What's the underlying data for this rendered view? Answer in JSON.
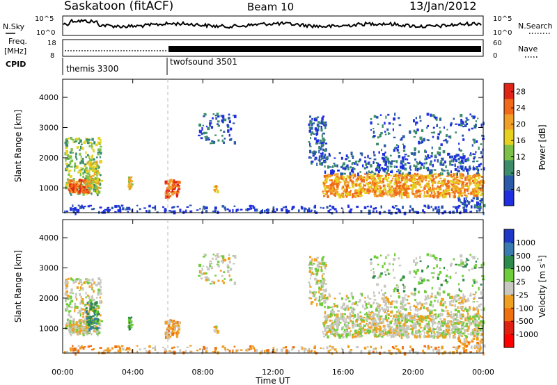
{
  "header": {
    "station": "Saskatoon (fitACF)",
    "beam": "Beam 10",
    "date": "13/Jan/2012"
  },
  "strips": {
    "nsky_label": "N.Sky",
    "nsearch_label": "N.Search",
    "nsky_ticks": [
      "10^5",
      "10^0"
    ],
    "nsearch_ticks": [
      "10^5",
      "10^0"
    ],
    "freq_label_1": "Freq.",
    "freq_label_2": "[MHz]",
    "freq_ticks": [
      "18",
      "8"
    ],
    "nave_label": "Nave",
    "nave_ticks": [
      "60",
      "0"
    ],
    "cpid_label": "CPID",
    "cpid_segments": [
      {
        "name": "themis 3300",
        "start_hour": 0,
        "end_hour": 6
      },
      {
        "name": "twofsound 3501",
        "start_hour": 6,
        "end_hour": 24
      }
    ]
  },
  "chart_data": [
    {
      "type": "heatmap",
      "title": "",
      "xlabel": "Time UT",
      "ylabel": "Slant Range [km]",
      "x_ticks": [
        "00:00",
        "04:00",
        "08:00",
        "12:00",
        "16:00",
        "20:00",
        "00:00"
      ],
      "xlim_hours": [
        0,
        24
      ],
      "y_ticks": [
        1000,
        2000,
        3000,
        4000
      ],
      "ylim": [
        180,
        4600
      ],
      "colorbar": {
        "label": "Power [dB]",
        "ticks": [
          4,
          8,
          12,
          16,
          20,
          24,
          28
        ],
        "range": [
          0,
          30
        ],
        "colors": [
          "#1f2fe0",
          "#2a5aa8",
          "#3c8c6a",
          "#7cc04a",
          "#e6d21e",
          "#f0a028",
          "#f06a1a",
          "#e02418"
        ]
      }
    },
    {
      "type": "heatmap",
      "title": "",
      "xlabel": "Time UT",
      "ylabel": "Slant Range [km]",
      "x_ticks": [
        "00:00",
        "04:00",
        "08:00",
        "12:00",
        "16:00",
        "20:00",
        "00:00"
      ],
      "xlim_hours": [
        0,
        24
      ],
      "y_ticks": [
        1000,
        2000,
        3000,
        4000
      ],
      "ylim": [
        180,
        4600
      ],
      "colorbar": {
        "label": "Velocity [m s-1]",
        "label_main": "Velocity",
        "label_unit": "[m s",
        "label_exp": "-1",
        "label_close": "]",
        "ticks": [
          "1000",
          "500",
          "100",
          "25",
          "-25",
          "-100",
          "-500",
          "-1000"
        ],
        "colors": [
          "#2038c8",
          "#3a7ab0",
          "#2e8a4a",
          "#6fcc3a",
          "#c8c8c0",
          "#f0a020",
          "#f07010",
          "#e02010",
          "#ff0000"
        ]
      }
    }
  ]
}
